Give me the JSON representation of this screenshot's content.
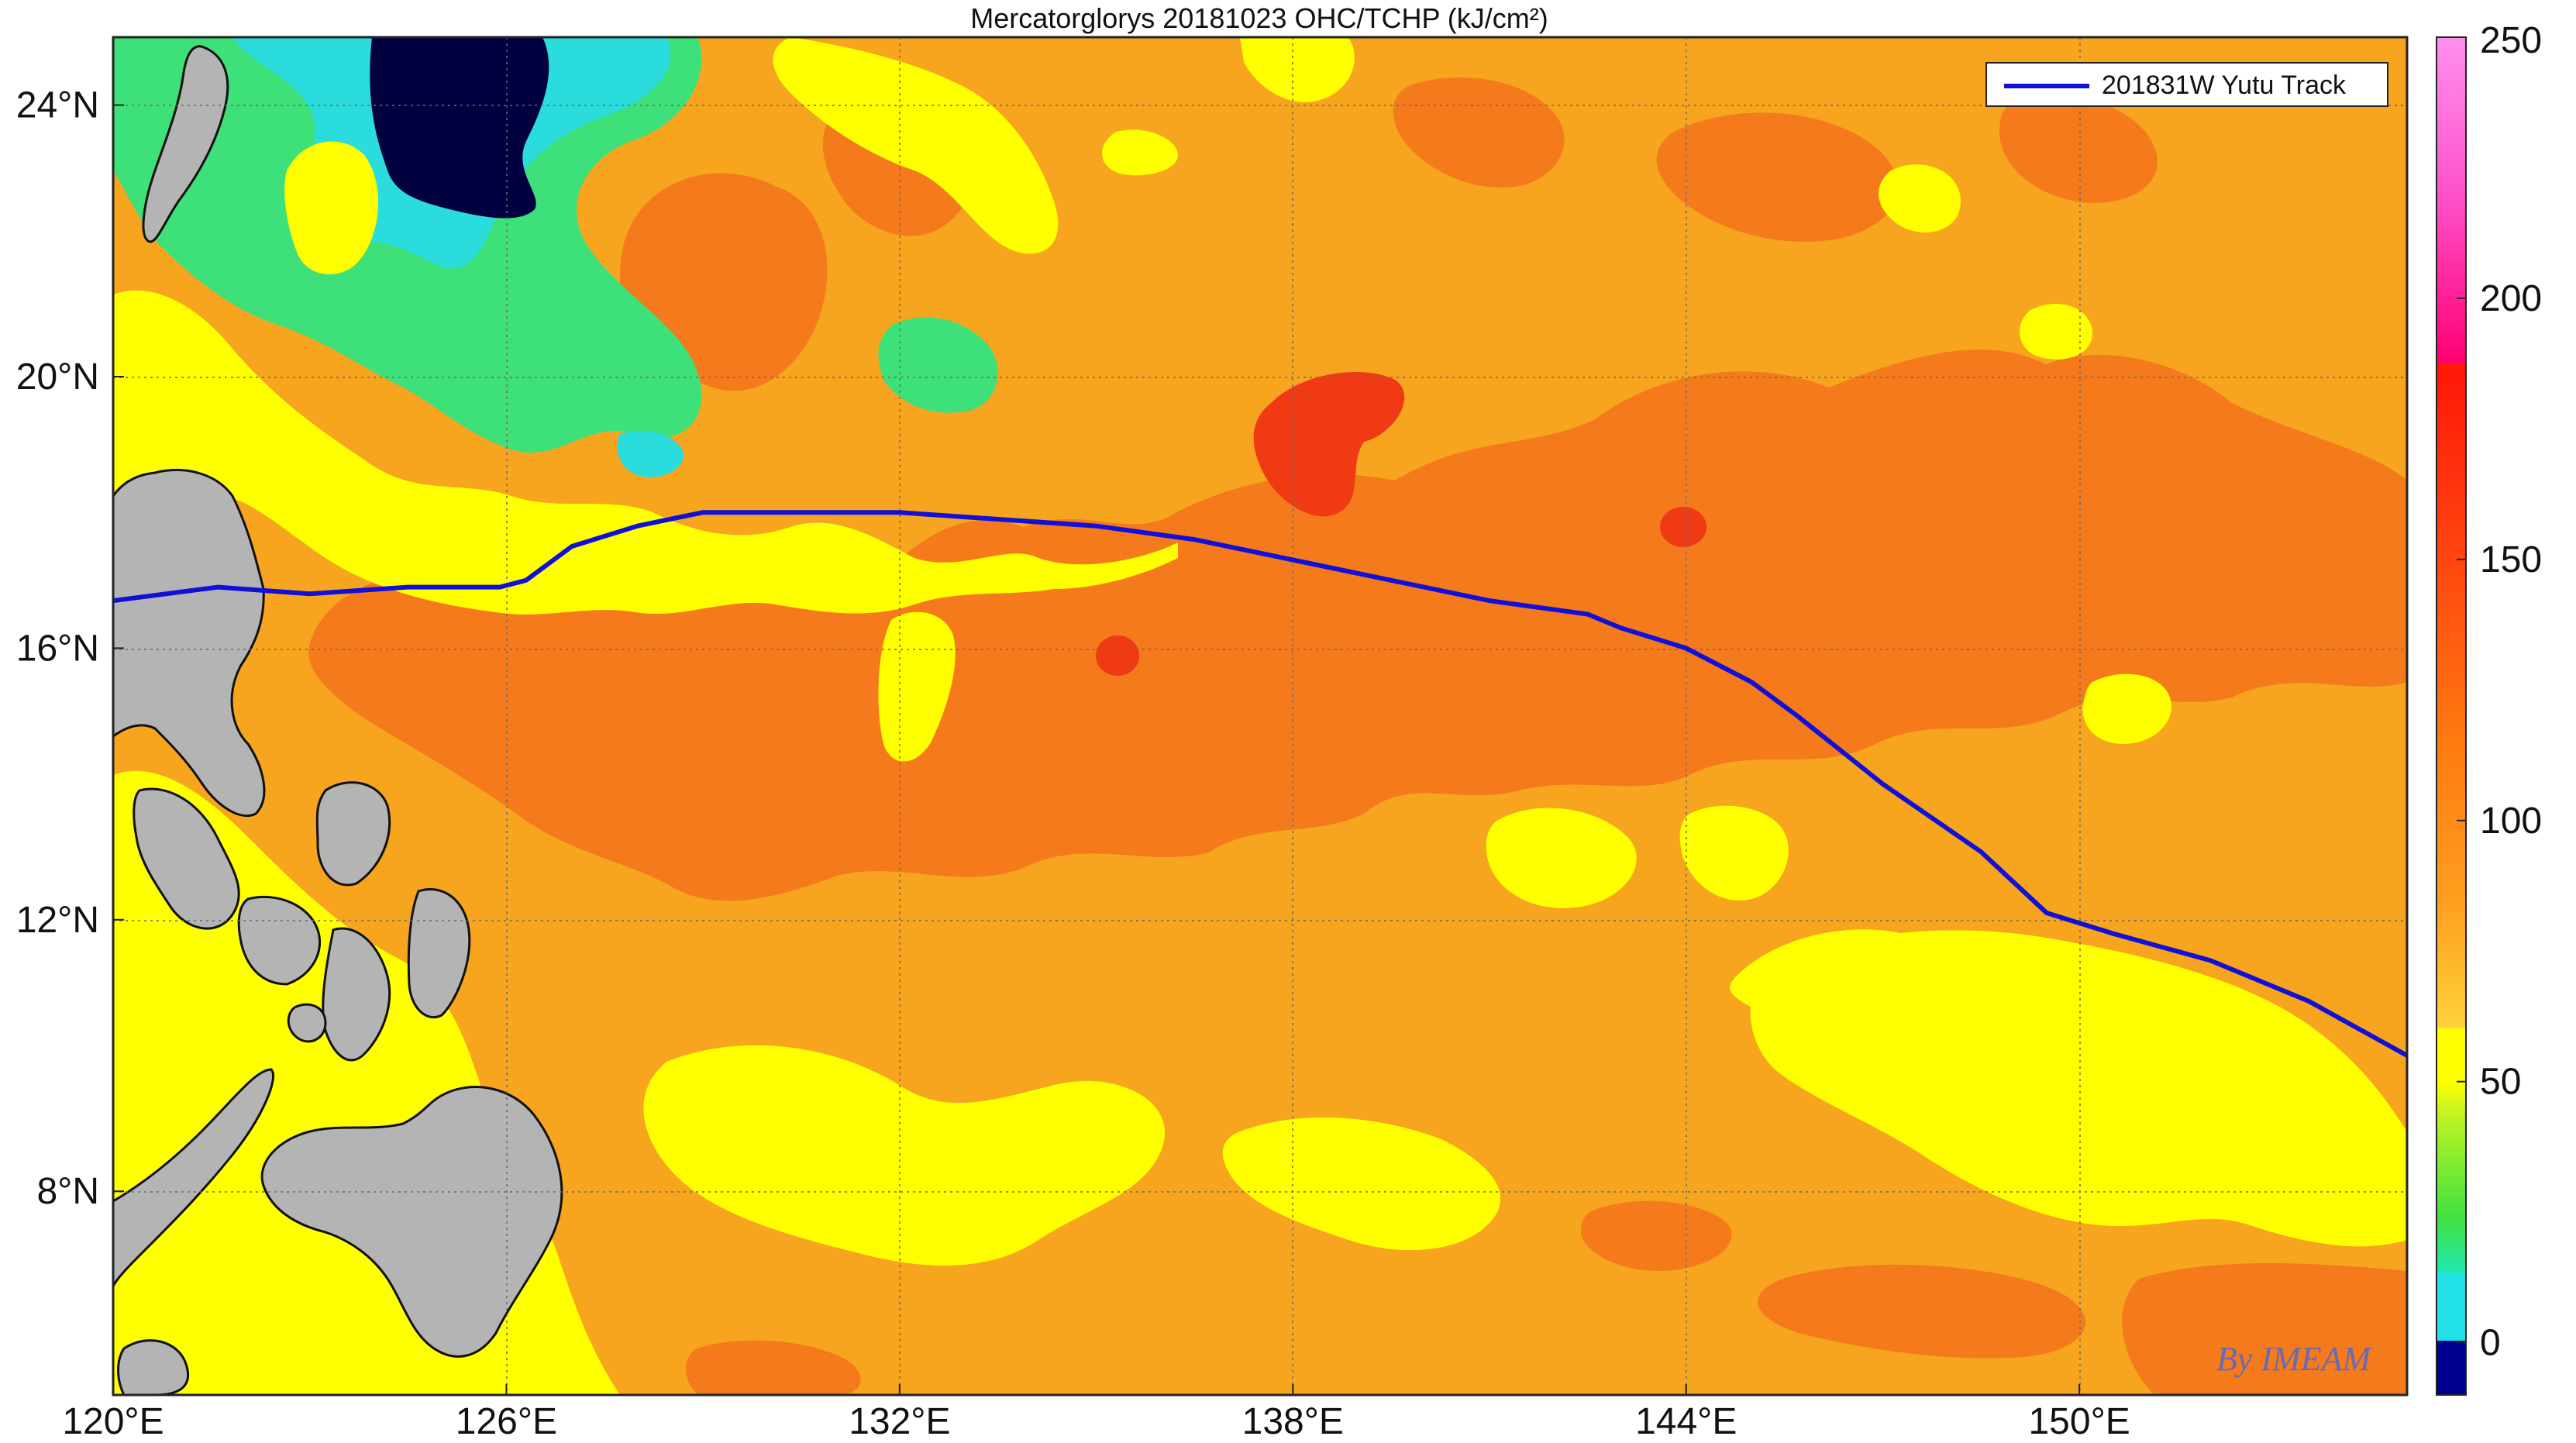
{
  "title": "Mercatorglorys 20181023 OHC/TCHP (kJ/cm²)",
  "legend": {
    "label": "201831W Yutu Track",
    "color": "#1010d8"
  },
  "credit": "By IMEAM",
  "map": {
    "lon_range": [
      120,
      155
    ],
    "lat_range": [
      5,
      25
    ],
    "lon_ticks": [
      "120°E",
      "126°E",
      "132°E",
      "138°E",
      "144°E",
      "150°E"
    ],
    "lat_ticks": [
      "8°N",
      "12°N",
      "16°N",
      "20°N",
      "24°N"
    ],
    "grid": true,
    "land_color": "#b4b4b4",
    "fields": {
      "ocean_base": "#f7a41e",
      "low": "#ffff00",
      "high": "#f47a1c",
      "very_high": "#f03a14",
      "green": "#3ee07a",
      "cyan": "#2adcdc",
      "dark": "#000040"
    }
  },
  "track": {
    "name": "201831W Yutu",
    "points": [
      [
        120.0,
        16.7
      ],
      [
        121.6,
        16.9
      ],
      [
        123.0,
        16.8
      ],
      [
        124.5,
        16.9
      ],
      [
        125.9,
        16.9
      ],
      [
        126.3,
        17.0
      ],
      [
        127.0,
        17.5
      ],
      [
        128.0,
        17.8
      ],
      [
        129.0,
        18.0
      ],
      [
        130.5,
        18.0
      ],
      [
        132.0,
        18.0
      ],
      [
        133.5,
        17.9
      ],
      [
        135.0,
        17.8
      ],
      [
        136.5,
        17.6
      ],
      [
        138.0,
        17.3
      ],
      [
        139.5,
        17.0
      ],
      [
        141.0,
        16.7
      ],
      [
        142.5,
        16.5
      ],
      [
        143.0,
        16.3
      ],
      [
        144.0,
        16.0
      ],
      [
        145.0,
        15.5
      ],
      [
        145.7,
        15.0
      ],
      [
        147.0,
        14.0
      ],
      [
        148.5,
        13.0
      ],
      [
        149.5,
        12.1
      ],
      [
        150.5,
        11.8
      ],
      [
        152.0,
        11.4
      ],
      [
        153.5,
        10.8
      ],
      [
        155.0,
        10.0
      ]
    ]
  },
  "colorbar": {
    "min": -10,
    "max": 250,
    "tick_values": [
      0,
      50,
      100,
      150,
      200,
      250
    ],
    "tick_labels": [
      "0",
      "50",
      "100",
      "150",
      "200",
      "250"
    ],
    "stops": [
      {
        "from": -10,
        "to": 0,
        "color": "#000090"
      },
      {
        "from": 0,
        "to": 8,
        "color": "#22e0e8"
      },
      {
        "from": 8,
        "to": 16,
        "color": "#20e8b0"
      },
      {
        "from": 16,
        "to": 30,
        "color": "#40e040"
      },
      {
        "from": 30,
        "to": 42,
        "color": "#a8f028"
      },
      {
        "from": 42,
        "to": 60,
        "color": "#ffff00"
      },
      {
        "from": 60,
        "to": 188,
        "color": "#ff7a10"
      },
      {
        "from": 188,
        "to": 200,
        "color": "#ff0070"
      },
      {
        "from": 200,
        "to": 250,
        "color": "#ff80e6"
      }
    ]
  }
}
